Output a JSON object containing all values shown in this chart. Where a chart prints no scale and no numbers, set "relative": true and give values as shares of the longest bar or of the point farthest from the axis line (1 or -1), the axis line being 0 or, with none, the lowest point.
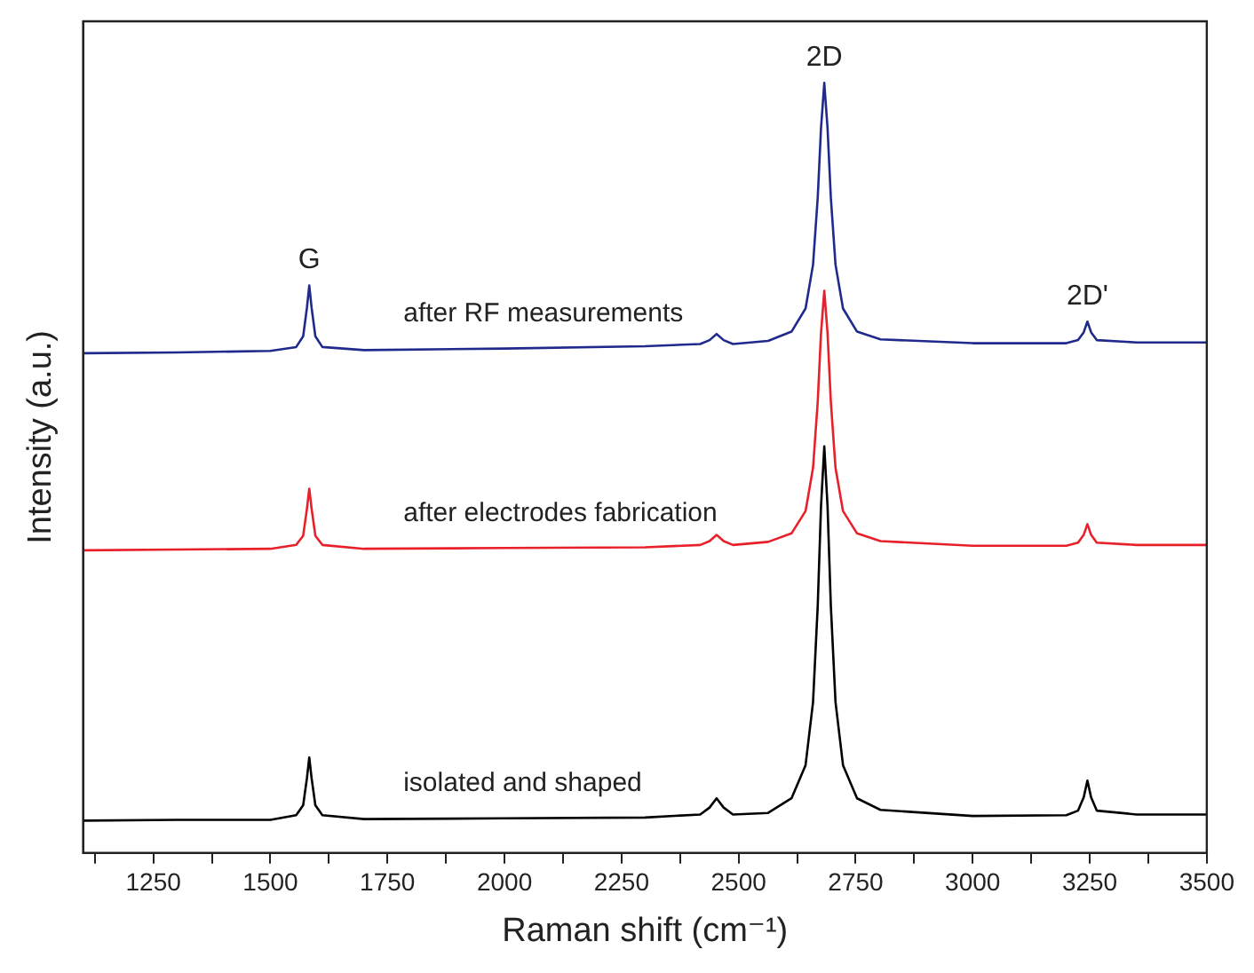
{
  "chart_data": {
    "type": "line",
    "relative": true,
    "xlabel": "Raman shift (cm⁻¹)",
    "ylabel": "Intensity (a.u.)",
    "x": [
      1100,
      1300,
      1500,
      1555,
      1570,
      1578,
      1583,
      1588,
      1596,
      1611,
      1700,
      2000,
      2300,
      2418,
      2438,
      2453,
      2468,
      2488,
      2563,
      2613,
      2643,
      2659,
      2669,
      2676,
      2683,
      2690,
      2697,
      2707,
      2723,
      2753,
      2803,
      3000,
      3200,
      3225,
      3237,
      3245,
      3253,
      3265,
      3350,
      3500
    ],
    "xlim": [
      1100,
      3500
    ],
    "xticks": [
      {
        "value": 1125,
        "label": null
      },
      1250,
      {
        "value": 1375,
        "label": null
      },
      1500,
      {
        "value": 1625,
        "label": null
      },
      1750,
      {
        "value": 1875,
        "label": null
      },
      2000,
      {
        "value": 2125,
        "label": null
      },
      2250,
      {
        "value": 2375,
        "label": null
      },
      2500,
      {
        "value": 2625,
        "label": null
      },
      2750,
      {
        "value": 2875,
        "label": null
      },
      3000,
      {
        "value": 3125,
        "label": null
      },
      3250,
      {
        "value": 3375,
        "label": null
      },
      3500
    ],
    "series": [
      {
        "name": "after RF measurements",
        "color": "#1f2a8c",
        "values": [
          0.649,
          0.65,
          0.652,
          0.657,
          0.671,
          0.708,
          0.737,
          0.708,
          0.671,
          0.657,
          0.653,
          0.655,
          0.658,
          0.661,
          0.666,
          0.674,
          0.666,
          0.661,
          0.665,
          0.677,
          0.707,
          0.764,
          0.851,
          0.941,
          1,
          0.941,
          0.851,
          0.764,
          0.707,
          0.677,
          0.667,
          0.662,
          0.662,
          0.666,
          0.676,
          0.69,
          0.676,
          0.666,
          0.663,
          0.663
        ]
      },
      {
        "name": "after electrodes fabrication",
        "color": "#e8202a",
        "values": [
          0.393,
          0.394,
          0.395,
          0.4,
          0.412,
          0.447,
          0.473,
          0.447,
          0.412,
          0.4,
          0.395,
          0.396,
          0.397,
          0.4,
          0.405,
          0.413,
          0.405,
          0.4,
          0.404,
          0.415,
          0.444,
          0.5,
          0.586,
          0.675,
          0.73,
          0.675,
          0.586,
          0.5,
          0.444,
          0.415,
          0.405,
          0.399,
          0.399,
          0.403,
          0.413,
          0.427,
          0.413,
          0.403,
          0.4,
          0.4
        ]
      },
      {
        "name": "isolated and shaped",
        "color": "#000000",
        "values": [
          0.042,
          0.043,
          0.043,
          0.049,
          0.062,
          0.097,
          0.124,
          0.097,
          0.062,
          0.049,
          0.044,
          0.045,
          0.046,
          0.05,
          0.059,
          0.071,
          0.059,
          0.05,
          0.052,
          0.071,
          0.114,
          0.196,
          0.321,
          0.45,
          0.528,
          0.45,
          0.321,
          0.196,
          0.114,
          0.071,
          0.056,
          0.048,
          0.049,
          0.055,
          0.072,
          0.094,
          0.072,
          0.055,
          0.05,
          0.05
        ]
      }
    ],
    "annotations": [
      {
        "text": "G",
        "x": 1583,
        "y": 0.737
      },
      {
        "text": "2D",
        "x": 2683,
        "y": 1
      },
      {
        "text": "2D'",
        "x": 3245,
        "y": 0.69
      }
    ],
    "grid": false,
    "legend": false,
    "marker": "none",
    "line_style": "solid"
  }
}
